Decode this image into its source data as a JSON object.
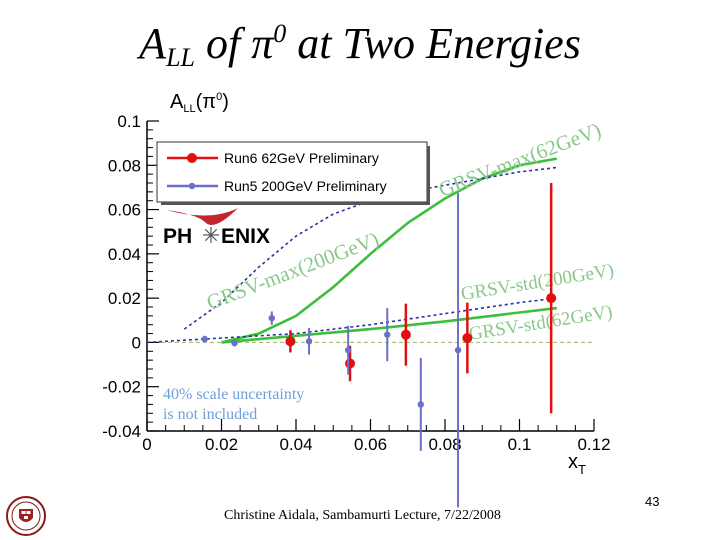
{
  "slide": {
    "title_main": "A",
    "title_sub": "LL",
    "title_mid": " of ",
    "title_pi": "π",
    "title_sup": "0",
    "title_end": " at Two Energies",
    "footer": "Christine Aidala, Sambamurti Lecture, 7/22/2008",
    "page_number": "43"
  },
  "chart_data": {
    "type": "scatter",
    "ylabel": "A_LL(π0)",
    "xlabel": "x_T",
    "xlim": [
      0,
      0.12
    ],
    "ylim": [
      -0.04,
      0.1
    ],
    "x_ticks": [
      0,
      0.02,
      0.04,
      0.06,
      0.08,
      0.1,
      0.12
    ],
    "x_tick_labels": [
      "0",
      "0.02",
      "0.04",
      "0.06",
      "0.08",
      "0.1",
      "0.12"
    ],
    "y_ticks": [
      -0.04,
      -0.02,
      0,
      0.02,
      0.04,
      0.06,
      0.08,
      0.1
    ],
    "y_tick_labels": [
      "-0.04",
      "-0.02",
      "0",
      "0.02",
      "0.04",
      "0.06",
      "0.08",
      "0.1"
    ],
    "legend_position": "top-left",
    "logo_text_left": "PH",
    "logo_text_right": "ENIX",
    "series": [
      {
        "name": "Run6  62GeV Preliminary",
        "color": "#e01010",
        "marker": "circle-large",
        "points": [
          {
            "x": 0.0385,
            "y": 0.0005,
            "err": 0.005
          },
          {
            "x": 0.0545,
            "y": -0.0095,
            "err": 0.008
          },
          {
            "x": 0.0695,
            "y": 0.0035,
            "err": 0.014
          },
          {
            "x": 0.086,
            "y": 0.002,
            "err": 0.016
          },
          {
            "x": 0.1085,
            "y": 0.02,
            "err": 0.052
          }
        ]
      },
      {
        "name": "Run5 200GeV Preliminary",
        "color": "#6a70c8",
        "marker": "circle-small",
        "points": [
          {
            "x": 0.0155,
            "y": 0.0015,
            "err": 0.0015
          },
          {
            "x": 0.0235,
            "y": -0.0003,
            "err": 0.0015
          },
          {
            "x": 0.0335,
            "y": 0.011,
            "err": 0.003
          },
          {
            "x": 0.0435,
            "y": 0.0005,
            "err": 0.006
          },
          {
            "x": 0.054,
            "y": -0.0035,
            "err": 0.011
          },
          {
            "x": 0.0645,
            "y": 0.0035,
            "err": 0.012
          },
          {
            "x": 0.0735,
            "y": -0.028,
            "err": 0.021
          },
          {
            "x": 0.0835,
            "y": -0.0035,
            "err": 0.071
          }
        ]
      }
    ],
    "curves": [
      {
        "label": "GRSV-max(62GeV)",
        "style": "solid",
        "color": "#3cbf3c",
        "x": [
          0.02,
          0.03,
          0.04,
          0.05,
          0.06,
          0.07,
          0.08,
          0.09,
          0.1,
          0.11
        ],
        "y": [
          0.0,
          0.004,
          0.012,
          0.025,
          0.04,
          0.054,
          0.065,
          0.074,
          0.08,
          0.083
        ]
      },
      {
        "label": "GRSV-max(200GeV)",
        "style": "dashed",
        "color": "#2a33a0",
        "x": [
          0.01,
          0.02,
          0.03,
          0.04,
          0.05,
          0.06,
          0.07,
          0.08,
          0.09,
          0.1,
          0.11
        ],
        "y": [
          0.006,
          0.018,
          0.034,
          0.048,
          0.058,
          0.064,
          0.068,
          0.071,
          0.074,
          0.077,
          0.079
        ]
      },
      {
        "label": "GRSV-std(200GeV)",
        "style": "dashed",
        "color": "#2a33a0",
        "x": [
          0.0,
          0.02,
          0.04,
          0.06,
          0.08,
          0.1,
          0.11
        ],
        "y": [
          0.0,
          0.002,
          0.004,
          0.008,
          0.013,
          0.018,
          0.02
        ]
      },
      {
        "label": "GRSV-std(62GeV)",
        "style": "solid",
        "color": "#3cbf3c",
        "x": [
          0.02,
          0.04,
          0.06,
          0.08,
          0.1,
          0.11
        ],
        "y": [
          0.0,
          0.003,
          0.006,
          0.0095,
          0.0135,
          0.0155
        ]
      }
    ],
    "annotations": {
      "curve_label_1": "GRSV-max(62GeV)",
      "curve_label_2": "GRSV-max(200GeV)",
      "curve_label_3": "GRSV-std(200GeV)",
      "curve_label_4": "GRSV-std(62GeV)",
      "note_line1": "40% scale uncertainty",
      "note_line2": "is not included"
    }
  }
}
